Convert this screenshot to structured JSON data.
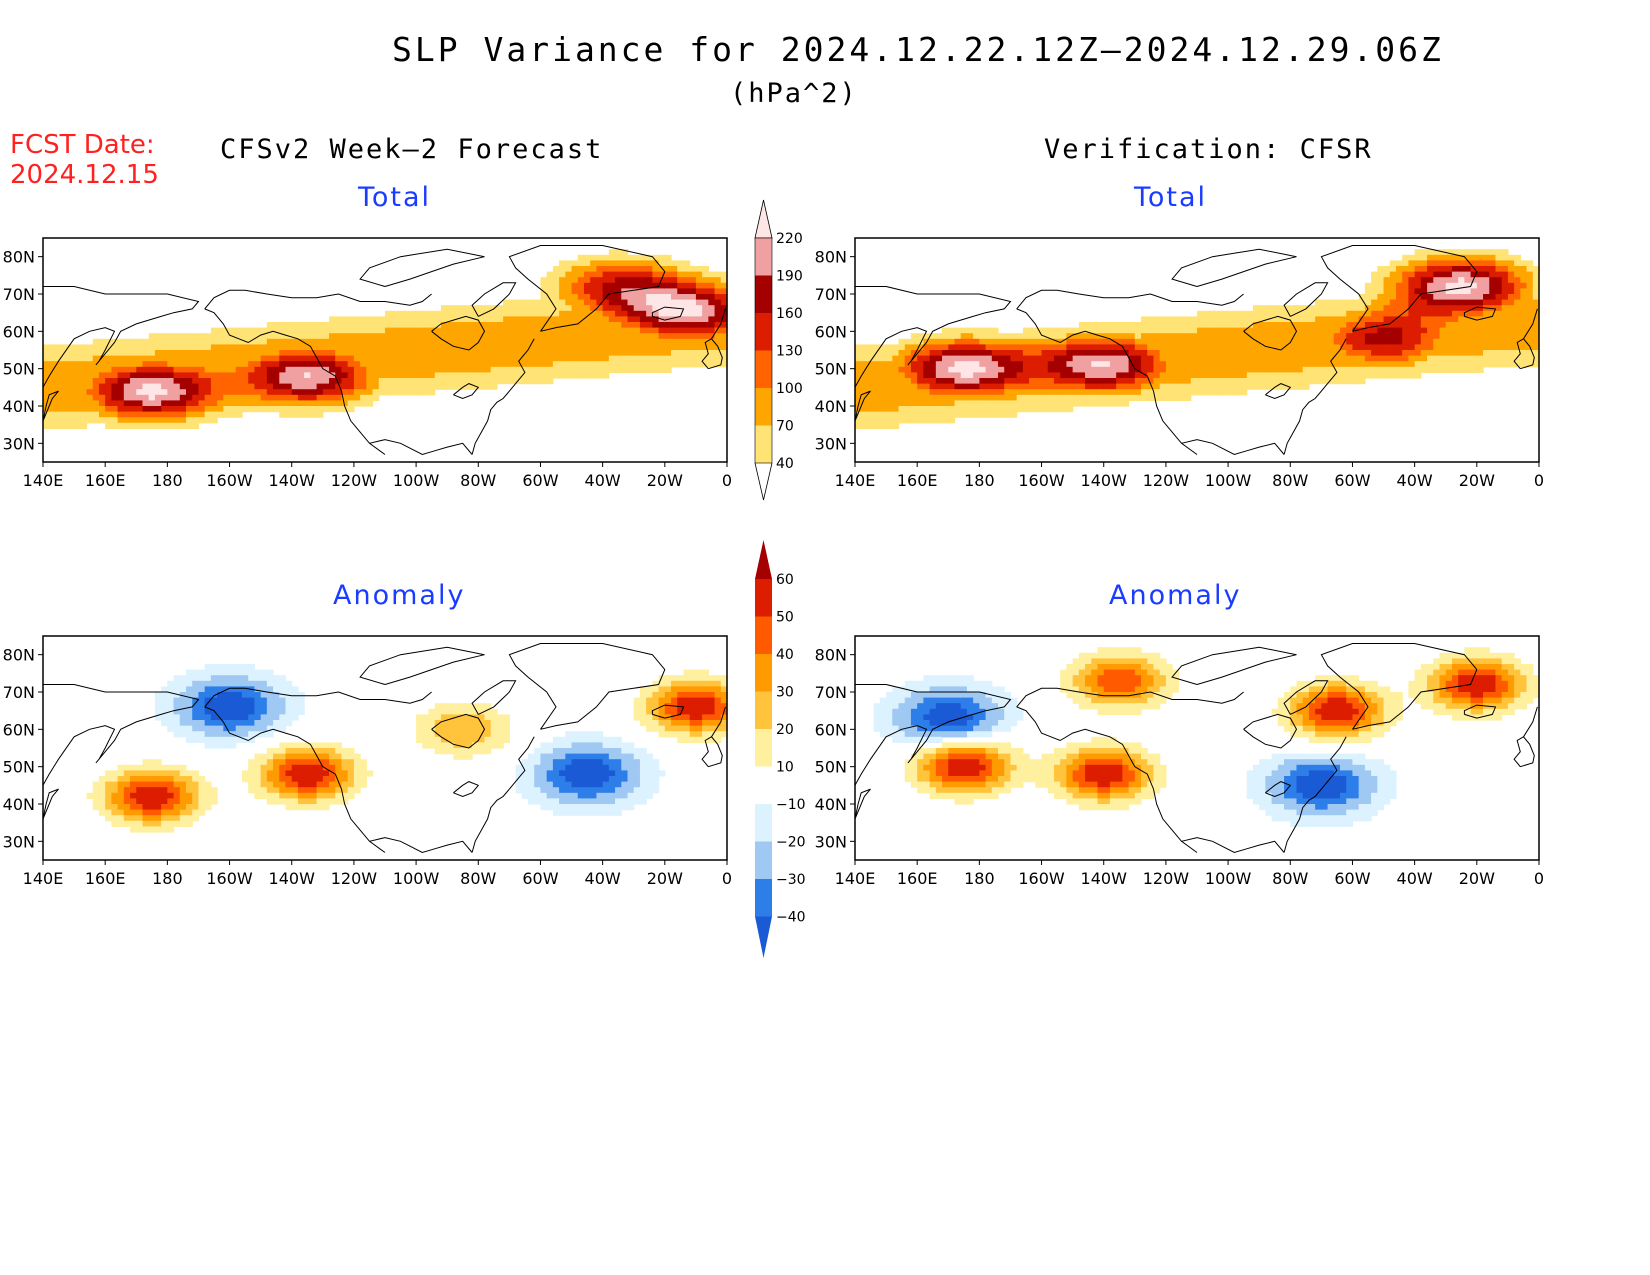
{
  "title": "SLP Variance for 2024.12.22.12Z—2024.12.29.06Z",
  "units": "(hPa^2)",
  "fcst_date": {
    "label": "FCST Date:",
    "value": "2024.12.15"
  },
  "columns": {
    "left": "CFSv2 Week—2 Forecast",
    "right": "Verification: CFSR"
  },
  "panel_titles": {
    "total": "Total",
    "anomaly": "Anomaly"
  },
  "axes": {
    "lat_labels": [
      "30N",
      "40N",
      "50N",
      "60N",
      "70N",
      "80N"
    ],
    "lon_labels": [
      "140E",
      "160E",
      "180",
      "160W",
      "140W",
      "120W",
      "100W",
      "80W",
      "60W",
      "40W",
      "20W",
      "0"
    ]
  },
  "colors": {
    "total_levels": [
      "#ffe375",
      "#ffa500",
      "#ff6400",
      "#dc1d00",
      "#a50000",
      "#f0a0a0",
      "#ffe6e6"
    ],
    "anomaly_levels": [
      "#1a5ad5",
      "#2d7ee8",
      "#9fc8f3",
      "#dcf2ff",
      "#ffffff",
      "#fff0a0",
      "#ffc33c",
      "#ff9a00",
      "#ff5a00",
      "#dc1d00",
      "#a50000"
    ],
    "title_blue": "#1a3cff",
    "fcst_red": "#ff2020"
  },
  "colorbars": {
    "total": {
      "labels": [
        "40",
        "70",
        "100",
        "130",
        "160",
        "190",
        "220"
      ]
    },
    "anomaly": {
      "labels": [
        "60",
        "50",
        "40",
        "30",
        "20",
        "10",
        "−10",
        "−20",
        "−30",
        "−40"
      ]
    }
  },
  "chart_data": {
    "type": "heatmap",
    "field": "SLP variance (hPa^2)",
    "domain": {
      "lon_range": [
        "140E",
        "0"
      ],
      "lat_range": [
        "25N",
        "85N"
      ]
    },
    "panels": [
      {
        "name": "CFSv2 Week-2 Forecast - Total",
        "features": [
          {
            "desc": "North Pacific maximum",
            "lon": 175,
            "lat": 44,
            "value": 230
          },
          {
            "desc": "Gulf of Alaska maximum",
            "lon": -135,
            "lat": 48,
            "value": 220
          },
          {
            "desc": "Northeast Atlantic maximum",
            "lon": -12,
            "lat": 65,
            "value": 210
          },
          {
            "desc": "Greenland Sea local maximum",
            "lon": -35,
            "lat": 72,
            "value": 150
          }
        ]
      },
      {
        "name": "Verification: CFSR - Total",
        "features": [
          {
            "desc": "North Pacific maximum",
            "lon": 175,
            "lat": 50,
            "value": 230
          },
          {
            "desc": "Gulf of Alaska maximum",
            "lon": -140,
            "lat": 51,
            "value": 220
          },
          {
            "desc": "Iceland / Norwegian Sea maximum",
            "lon": -25,
            "lat": 72,
            "value": 230
          },
          {
            "desc": "Labrador Sea maximum",
            "lon": -50,
            "lat": 58,
            "value": 170
          }
        ]
      },
      {
        "name": "CFSv2 Week-2 Forecast - Anomaly",
        "features": [
          {
            "desc": "North Pacific positive anomaly",
            "lon": 175,
            "lat": 42,
            "value": 60
          },
          {
            "desc": "Gulf of Alaska positive anomaly",
            "lon": -135,
            "lat": 48,
            "value": 60
          },
          {
            "desc": "Bering / Arctic negative anomaly",
            "lon": -160,
            "lat": 66,
            "value": -40
          },
          {
            "desc": "North Atlantic negative anomaly",
            "lon": -45,
            "lat": 48,
            "value": -40
          },
          {
            "desc": "Northeast Atlantic positive anomaly",
            "lon": -10,
            "lat": 66,
            "value": 60
          },
          {
            "desc": "Hudson Bay positive anomaly",
            "lon": -85,
            "lat": 60,
            "value": 30
          }
        ]
      },
      {
        "name": "Verification: CFSR - Anomaly",
        "features": [
          {
            "desc": "North Pacific positive anomaly",
            "lon": 175,
            "lat": 50,
            "value": 60
          },
          {
            "desc": "Gulf of Alaska positive anomaly",
            "lon": -140,
            "lat": 48,
            "value": 60
          },
          {
            "desc": "Beaufort Sea positive anomaly",
            "lon": -135,
            "lat": 73,
            "value": 50
          },
          {
            "desc": "North America / Atlantic negative anomaly",
            "lon": -70,
            "lat": 45,
            "value": -40
          },
          {
            "desc": "Davis Strait positive anomaly",
            "lon": -65,
            "lat": 65,
            "value": 60
          },
          {
            "desc": "Greenland Sea positive anomaly",
            "lon": -20,
            "lat": 72,
            "value": 60
          },
          {
            "desc": "Bering Sea negative anomaly",
            "lon": 170,
            "lat": 63,
            "value": -40
          }
        ]
      }
    ]
  }
}
